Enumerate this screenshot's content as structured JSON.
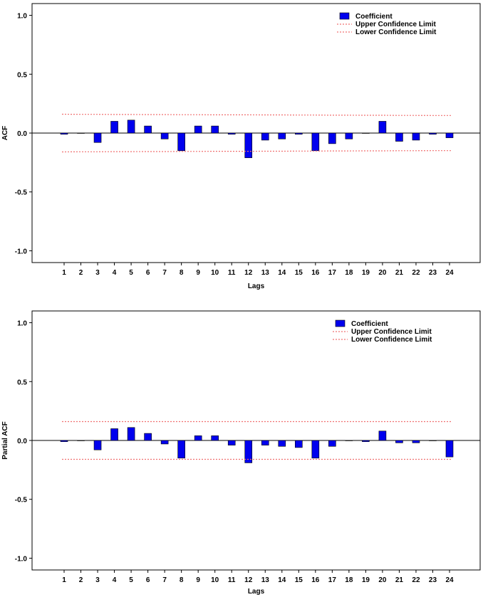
{
  "chart_data": [
    {
      "type": "bar",
      "title": "",
      "xlabel": "Lags",
      "ylabel": "ACF",
      "ylim": [
        -1.1,
        1.1
      ],
      "yticks": [
        "1.0",
        "0.5",
        "0.0",
        "-0.5",
        "-1.0"
      ],
      "ytick_values": [
        1.0,
        0.5,
        0.0,
        -0.5,
        -1.0
      ],
      "categories": [
        "1",
        "2",
        "3",
        "4",
        "5",
        "6",
        "7",
        "8",
        "9",
        "10",
        "11",
        "12",
        "13",
        "14",
        "15",
        "16",
        "17",
        "18",
        "19",
        "20",
        "21",
        "22",
        "23",
        "24"
      ],
      "series": [
        {
          "name": "Coefficient",
          "color": "#0000ee",
          "values": [
            -0.01,
            0.0,
            -0.08,
            0.1,
            0.11,
            0.06,
            -0.05,
            -0.15,
            0.06,
            0.06,
            -0.01,
            -0.21,
            -0.06,
            -0.05,
            -0.01,
            -0.15,
            -0.09,
            -0.05,
            0.0,
            0.1,
            -0.07,
            -0.06,
            -0.01,
            -0.04
          ]
        },
        {
          "name": "Upper Confidence Limit",
          "color": "#f07070",
          "values": [
            0.16,
            0.159,
            0.159,
            0.158,
            0.158,
            0.157,
            0.157,
            0.156,
            0.156,
            0.155,
            0.155,
            0.155,
            0.154,
            0.154,
            0.153,
            0.153,
            0.152,
            0.152,
            0.151,
            0.151,
            0.15,
            0.15,
            0.149,
            0.149
          ]
        },
        {
          "name": "Lower Confidence Limit",
          "color": "#f07070",
          "values": [
            -0.16,
            -0.159,
            -0.159,
            -0.158,
            -0.158,
            -0.157,
            -0.157,
            -0.156,
            -0.156,
            -0.155,
            -0.155,
            -0.155,
            -0.154,
            -0.154,
            -0.153,
            -0.153,
            -0.152,
            -0.152,
            -0.151,
            -0.151,
            -0.15,
            -0.15,
            -0.149,
            -0.149
          ]
        }
      ],
      "legend": "top-right",
      "grid": false
    },
    {
      "type": "bar",
      "title": "",
      "xlabel": "Lags",
      "ylabel": "Partial ACF",
      "ylim": [
        -1.1,
        1.1
      ],
      "yticks": [
        "1.0",
        "0.5",
        "0.0",
        "-0.5",
        "-1.0"
      ],
      "ytick_values": [
        1.0,
        0.5,
        0.0,
        -0.5,
        -1.0
      ],
      "categories": [
        "1",
        "2",
        "3",
        "4",
        "5",
        "6",
        "7",
        "8",
        "9",
        "10",
        "11",
        "12",
        "13",
        "14",
        "15",
        "16",
        "17",
        "18",
        "19",
        "20",
        "21",
        "22",
        "23",
        "24"
      ],
      "series": [
        {
          "name": "Coefficient",
          "color": "#0000ee",
          "values": [
            -0.01,
            0.0,
            -0.08,
            0.1,
            0.11,
            0.06,
            -0.03,
            -0.15,
            0.04,
            0.04,
            -0.04,
            -0.19,
            -0.04,
            -0.05,
            -0.06,
            -0.15,
            -0.05,
            0.0,
            -0.01,
            0.08,
            -0.02,
            -0.02,
            0.0,
            -0.14
          ]
        },
        {
          "name": "Upper Confidence Limit",
          "color": "#f07070",
          "values": [
            0.16,
            0.16,
            0.16,
            0.16,
            0.16,
            0.16,
            0.16,
            0.16,
            0.16,
            0.16,
            0.16,
            0.16,
            0.16,
            0.16,
            0.16,
            0.16,
            0.16,
            0.16,
            0.16,
            0.16,
            0.16,
            0.16,
            0.16,
            0.16
          ]
        },
        {
          "name": "Lower Confidence Limit",
          "color": "#f07070",
          "values": [
            -0.16,
            -0.16,
            -0.16,
            -0.16,
            -0.16,
            -0.16,
            -0.16,
            -0.16,
            -0.16,
            -0.16,
            -0.16,
            -0.16,
            -0.16,
            -0.16,
            -0.16,
            -0.16,
            -0.16,
            -0.16,
            -0.16,
            -0.16,
            -0.16,
            -0.16,
            -0.16,
            -0.16
          ]
        }
      ],
      "legend": "top-right",
      "grid": false
    }
  ]
}
